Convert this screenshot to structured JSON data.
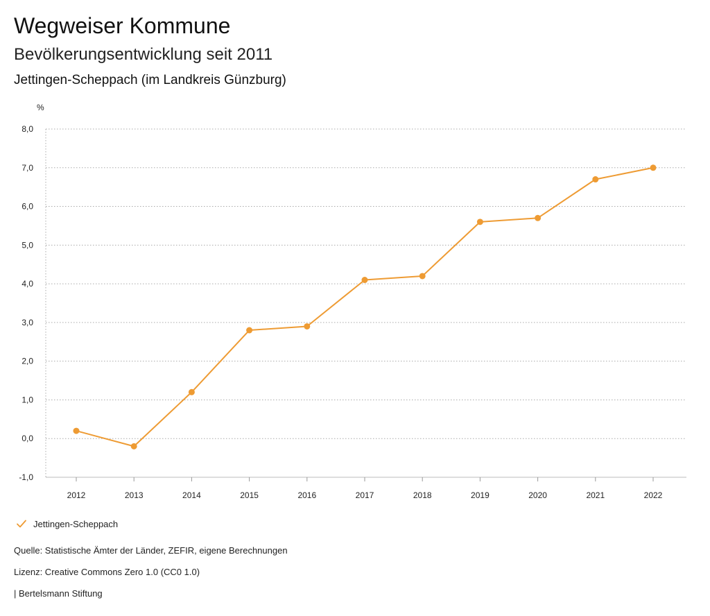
{
  "header": {
    "title": "Wegweiser Kommune",
    "subtitle": "Bevölkerungsentwicklung seit 2011",
    "region": "Jettingen-Scheppach (im Landkreis Günzburg)"
  },
  "chart_data": {
    "type": "line",
    "ylabel": "%",
    "ylim": [
      -1,
      8
    ],
    "yticks": [
      -1,
      0,
      1,
      2,
      3,
      4,
      5,
      6,
      7,
      8
    ],
    "ytick_labels": [
      "-1,0",
      "0,0",
      "1,0",
      "2,0",
      "3,0",
      "4,0",
      "5,0",
      "6,0",
      "7,0",
      "8,0"
    ],
    "categories": [
      "2012",
      "2013",
      "2014",
      "2015",
      "2016",
      "2017",
      "2018",
      "2019",
      "2020",
      "2021",
      "2022"
    ],
    "series": [
      {
        "name": "Jettingen-Scheppach",
        "values": [
          0.2,
          -0.2,
          1.2,
          2.8,
          2.9,
          4.1,
          4.2,
          5.6,
          5.7,
          6.7,
          7.0
        ],
        "color": "#ee9b33"
      }
    ],
    "grid": true,
    "legend": "bottom-left"
  },
  "legend": {
    "items": [
      {
        "label": "Jettingen-Scheppach",
        "icon": "check-icon",
        "color": "#ee9b33"
      }
    ]
  },
  "footer": {
    "source": "Quelle: Statistische Ämter der Länder, ZEFIR, eigene Berechnungen",
    "license": "Lizenz: Creative Commons Zero 1.0 (CC0 1.0)",
    "credit": "| Bertelsmann Stiftung"
  }
}
